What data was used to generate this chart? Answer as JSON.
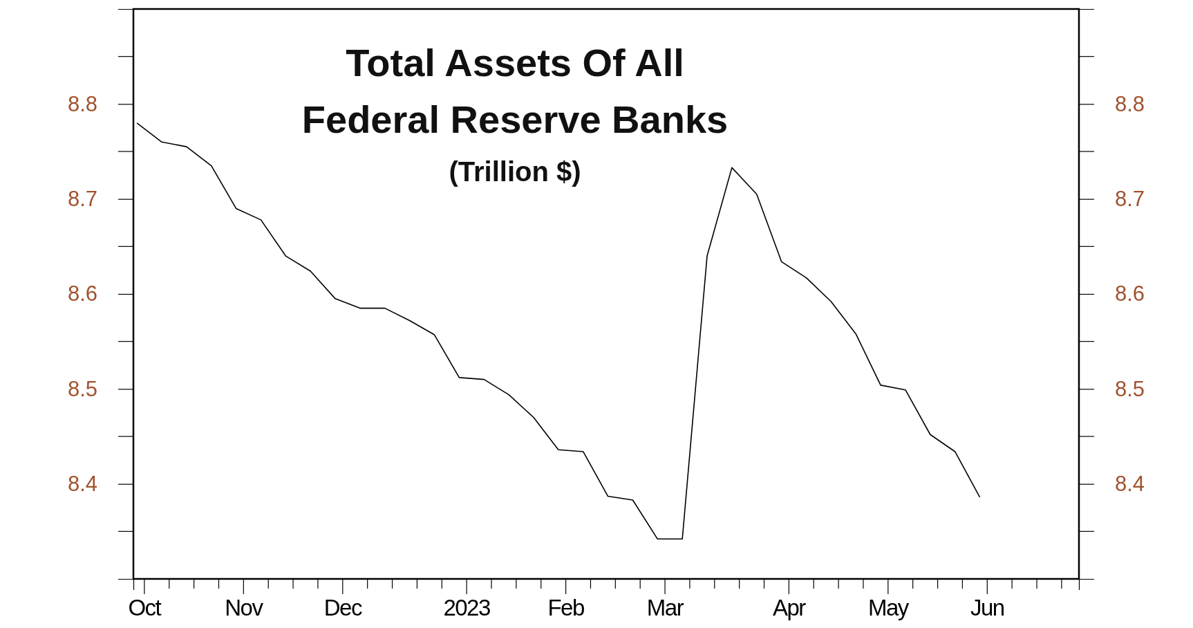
{
  "chart_data": {
    "type": "line",
    "title": "Total Assets Of All\nFederal Reserve Banks",
    "subtitle": "(Trillion $)",
    "x": [
      "2022-10-05",
      "2022-10-12",
      "2022-10-19",
      "2022-10-26",
      "2022-11-02",
      "2022-11-09",
      "2022-11-16",
      "2022-11-23",
      "2022-11-30",
      "2022-12-07",
      "2022-12-14",
      "2022-12-21",
      "2022-12-28",
      "2023-01-04",
      "2023-01-11",
      "2023-01-18",
      "2023-01-25",
      "2023-02-01",
      "2023-02-08",
      "2023-02-15",
      "2023-02-22",
      "2023-03-01",
      "2023-03-08",
      "2023-03-15",
      "2023-03-22",
      "2023-03-29",
      "2023-04-05",
      "2023-04-12",
      "2023-04-19",
      "2023-04-26",
      "2023-05-03",
      "2023-05-10",
      "2023-05-17",
      "2023-05-24",
      "2023-05-31"
    ],
    "series": [
      {
        "color": "#000000",
        "values": [
          8.78,
          8.76,
          8.755,
          8.735,
          8.69,
          8.678,
          8.64,
          8.624,
          8.595,
          8.585,
          8.585,
          8.572,
          8.557,
          8.512,
          8.51,
          8.494,
          8.47,
          8.436,
          8.434,
          8.387,
          8.383,
          8.342,
          8.342,
          8.64,
          8.733,
          8.705,
          8.634,
          8.617,
          8.592,
          8.558,
          8.504,
          8.499,
          8.452,
          8.434,
          8.386
        ]
      }
    ],
    "xlim": [
      "2022-10-04",
      "2023-06-28"
    ],
    "xticks": [
      {
        "value": "2022-10-07",
        "label": "Oct"
      },
      {
        "value": "2022-10-14",
        "label": null
      },
      {
        "value": "2022-10-21",
        "label": null
      },
      {
        "value": "2022-10-28",
        "label": null
      },
      {
        "value": "2022-11-04",
        "label": "Nov"
      },
      {
        "value": "2022-11-11",
        "label": null
      },
      {
        "value": "2022-11-18",
        "label": null
      },
      {
        "value": "2022-11-25",
        "label": null
      },
      {
        "value": "2022-12-02",
        "label": "Dec"
      },
      {
        "value": "2022-12-09",
        "label": null
      },
      {
        "value": "2022-12-16",
        "label": null
      },
      {
        "value": "2022-12-23",
        "label": null
      },
      {
        "value": "2022-12-30",
        "label": null
      },
      {
        "value": "2023-01-06",
        "label": "2023"
      },
      {
        "value": "2023-01-13",
        "label": null
      },
      {
        "value": "2023-01-20",
        "label": null
      },
      {
        "value": "2023-01-27",
        "label": null
      },
      {
        "value": "2023-02-03",
        "label": "Feb"
      },
      {
        "value": "2023-02-10",
        "label": null
      },
      {
        "value": "2023-02-17",
        "label": null
      },
      {
        "value": "2023-02-24",
        "label": null
      },
      {
        "value": "2023-03-03",
        "label": "Mar"
      },
      {
        "value": "2023-03-10",
        "label": null
      },
      {
        "value": "2023-03-17",
        "label": null
      },
      {
        "value": "2023-03-24",
        "label": null
      },
      {
        "value": "2023-03-31",
        "label": null
      },
      {
        "value": "2023-04-07",
        "label": "Apr"
      },
      {
        "value": "2023-04-14",
        "label": null
      },
      {
        "value": "2023-04-21",
        "label": null
      },
      {
        "value": "2023-04-28",
        "label": null
      },
      {
        "value": "2023-05-05",
        "label": "May"
      },
      {
        "value": "2023-05-12",
        "label": null
      },
      {
        "value": "2023-05-19",
        "label": null
      },
      {
        "value": "2023-05-26",
        "label": null
      },
      {
        "value": "2023-06-02",
        "label": "Jun"
      },
      {
        "value": "2023-06-09",
        "label": null
      },
      {
        "value": "2023-06-16",
        "label": null
      },
      {
        "value": "2023-06-23",
        "label": null
      }
    ],
    "ylim": [
      8.3,
      8.9
    ],
    "yticks": [
      8.4,
      8.5,
      8.6,
      8.7,
      8.8
    ],
    "y2lim": [
      8.3,
      8.9
    ],
    "y2ticks": [
      8.4,
      8.5,
      8.6,
      8.7,
      8.8
    ],
    "marker": "none",
    "line_style": "solid"
  }
}
